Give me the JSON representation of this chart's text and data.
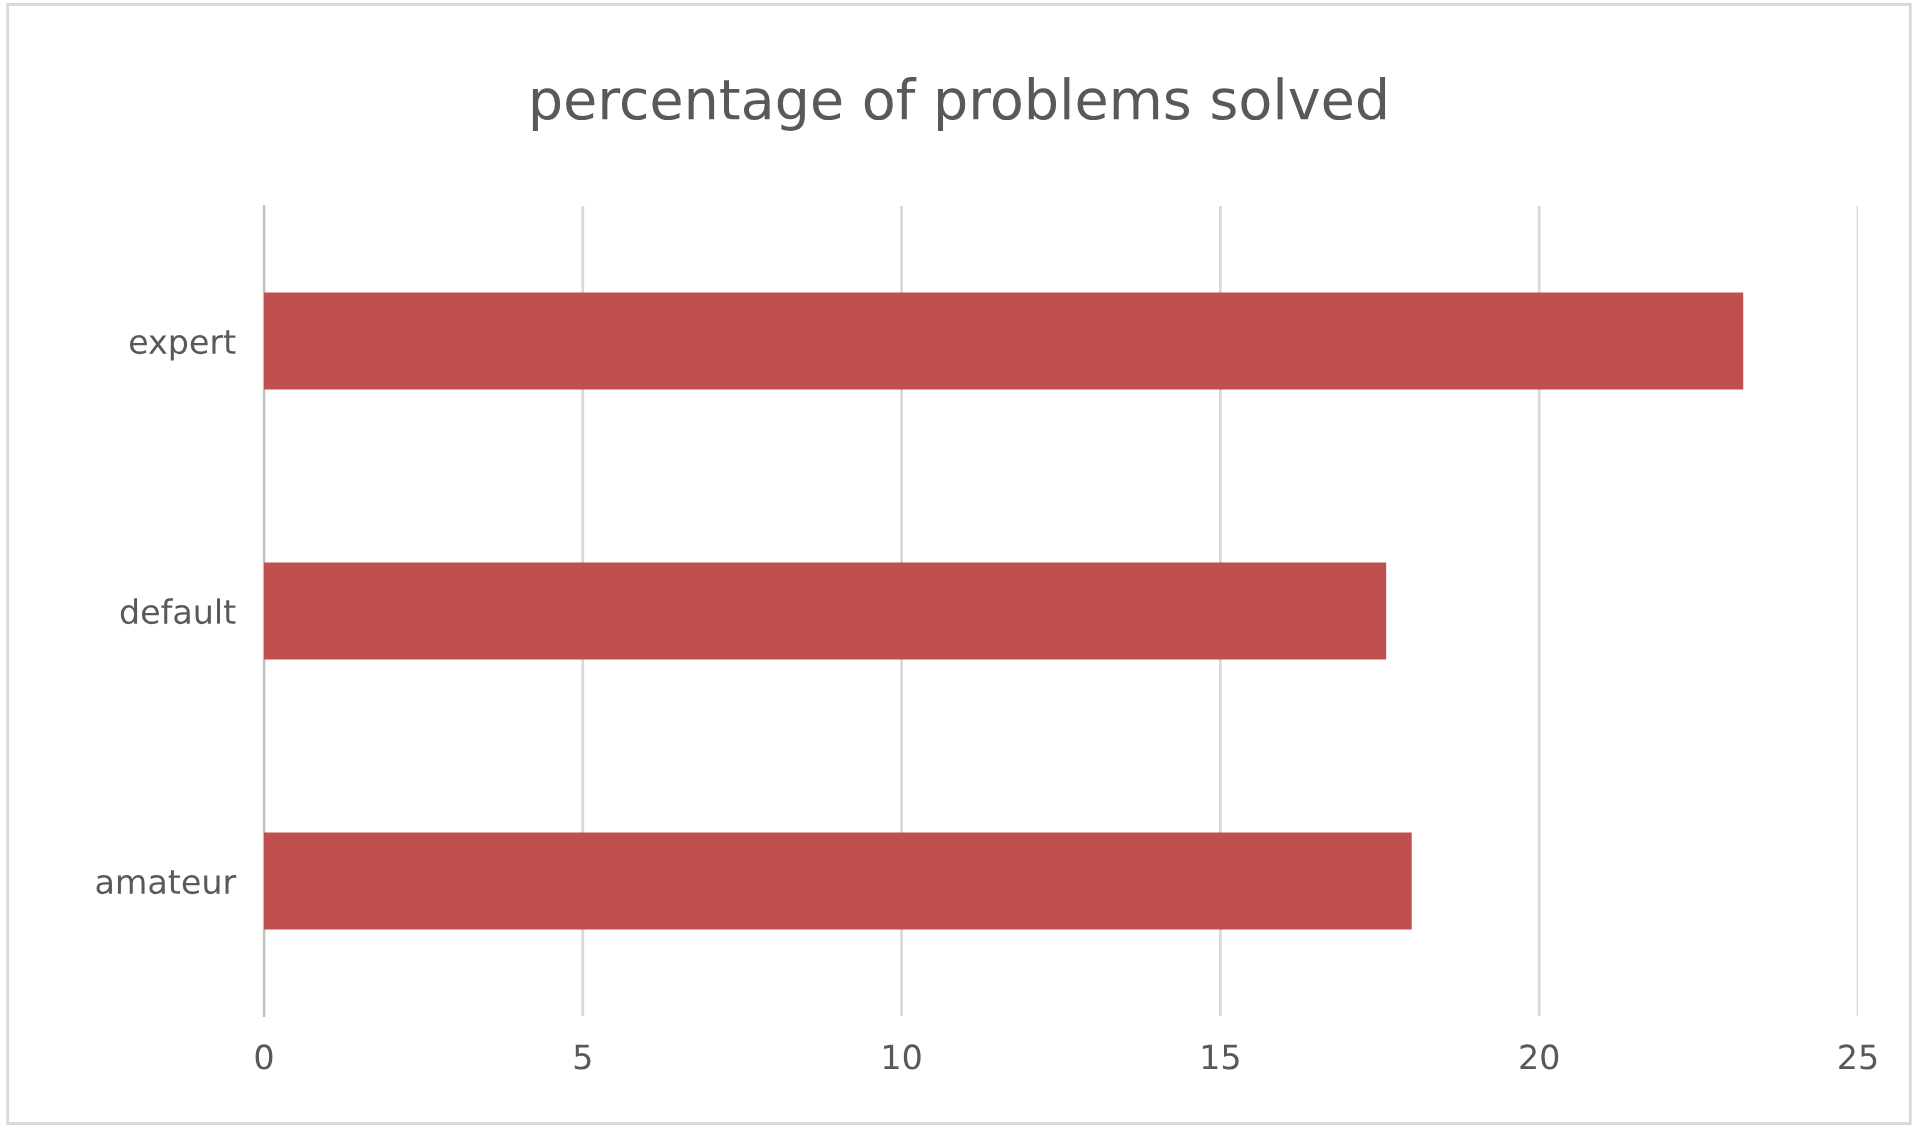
{
  "chart_data": {
    "type": "bar",
    "orientation": "horizontal",
    "title": "percentage of problems solved",
    "categories": [
      "expert",
      "default",
      "amateur"
    ],
    "values": [
      23.2,
      17.6,
      18.0
    ],
    "color": "#c0504d",
    "xlim": [
      0,
      25
    ],
    "xticks": [
      0,
      5,
      10,
      15,
      20,
      25
    ],
    "grid": "x",
    "legend": false
  }
}
